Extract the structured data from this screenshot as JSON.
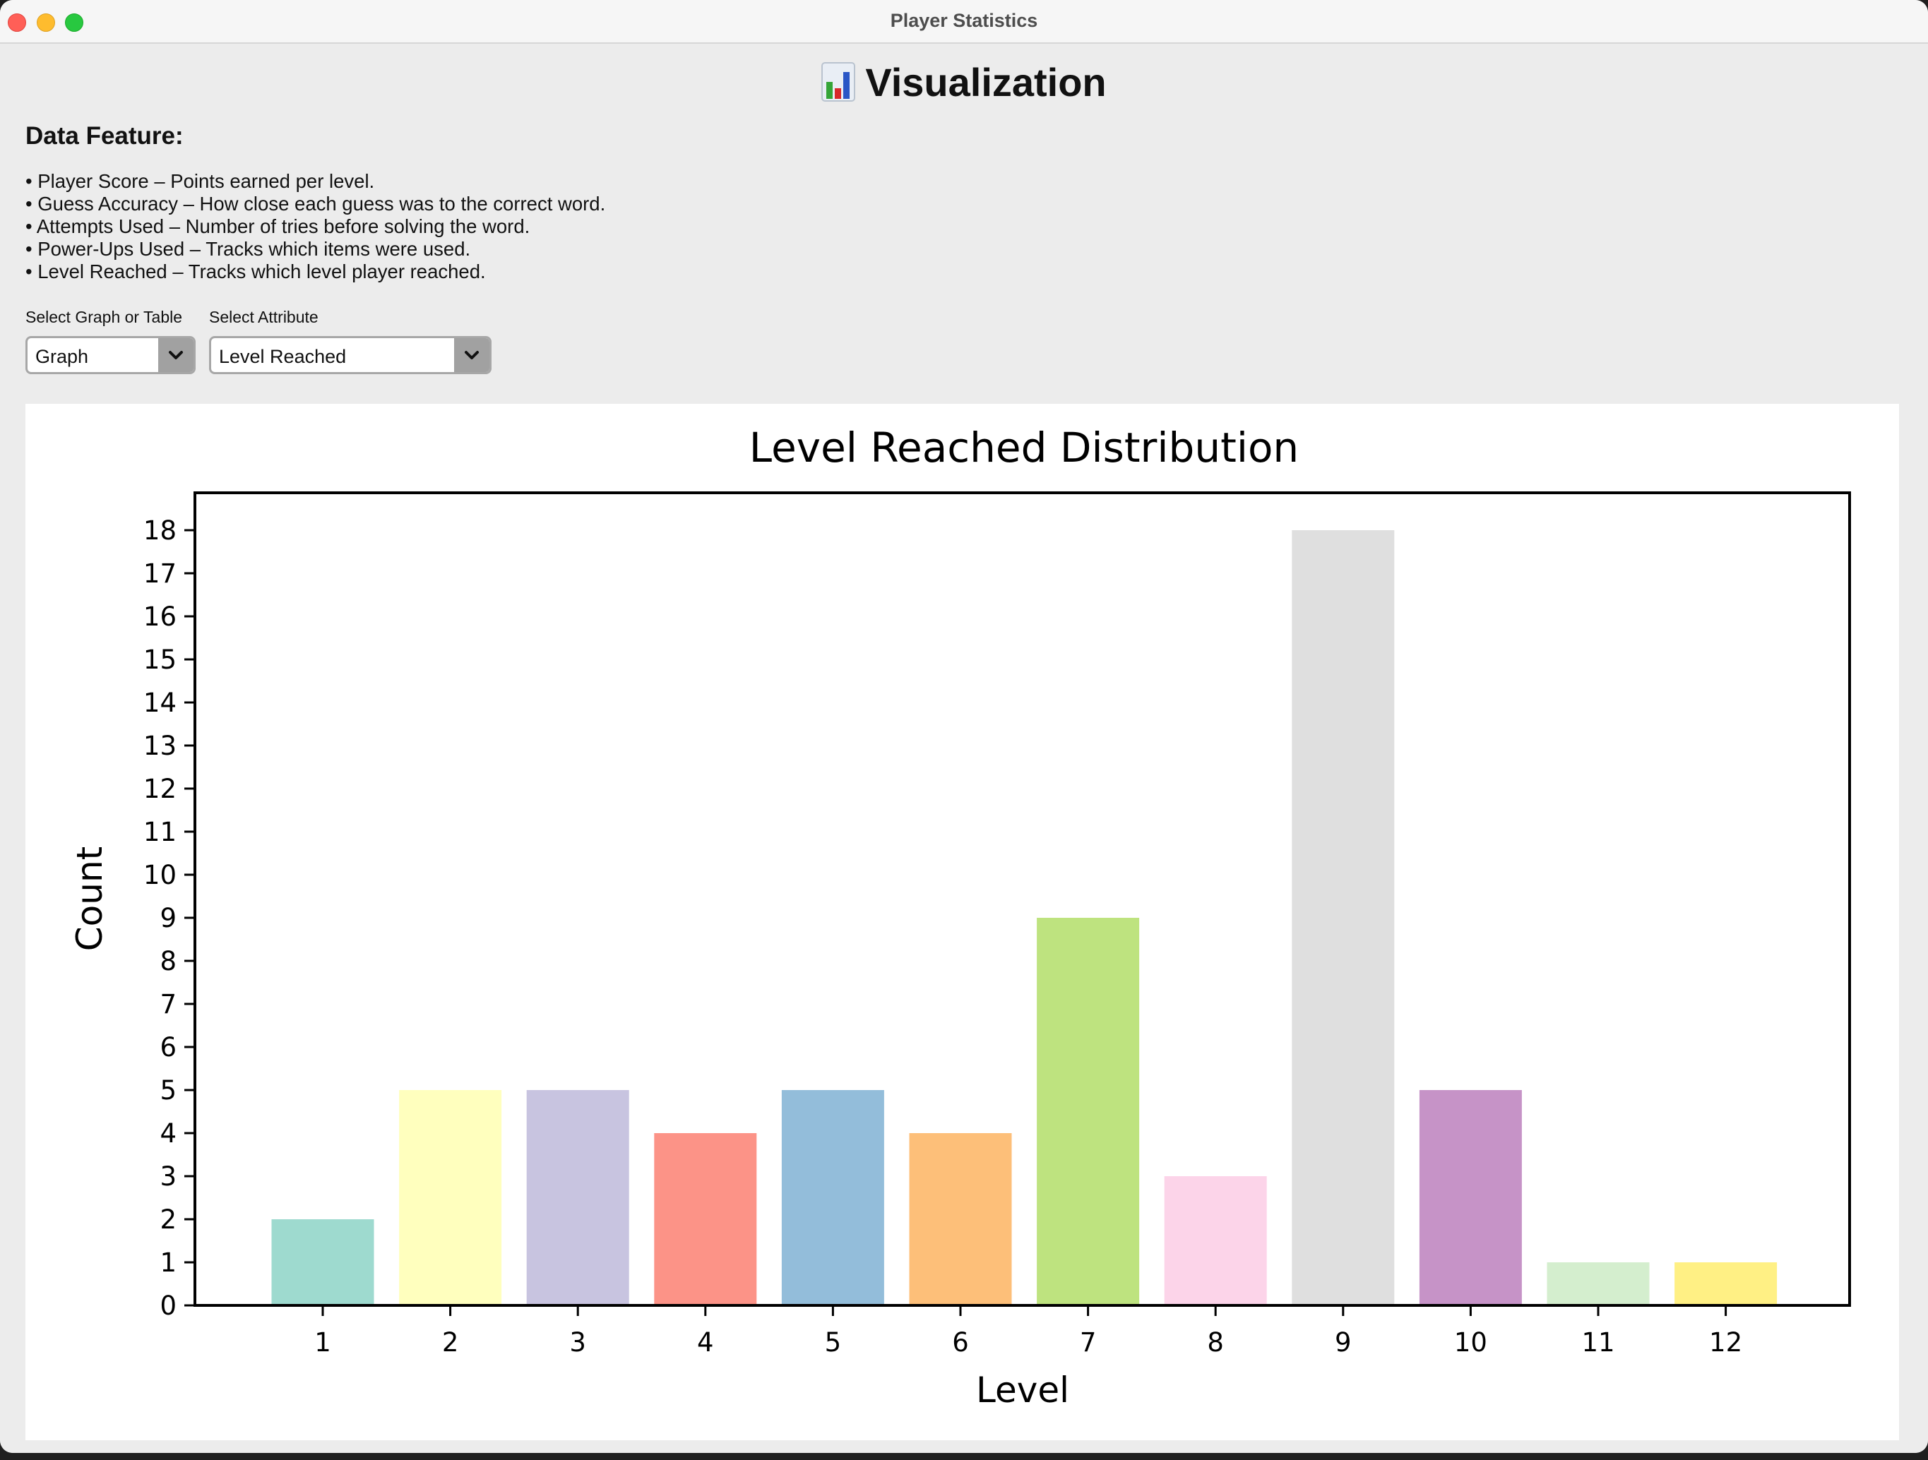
{
  "window": {
    "title": "Player Statistics"
  },
  "header": {
    "title": "Visualization",
    "icon": "bar-chart-icon"
  },
  "features": {
    "title": "Data Feature:",
    "items": [
      "• Player Score – Points earned per level.",
      "• Guess Accuracy – How close each guess was to the correct word.",
      "• Attempts Used – Number of tries before solving the word.",
      "• Power-Ups Used – Tracks which items were used.",
      "• Level Reached – Tracks which level player reached."
    ]
  },
  "controls": {
    "graph_or_table": {
      "label": "Select Graph or Table",
      "value": "Graph"
    },
    "attribute": {
      "label": "Select Attribute",
      "value": "Level Reached"
    }
  },
  "chart_data": {
    "type": "bar",
    "title": "Level Reached Distribution",
    "xlabel": "Level",
    "ylabel": "Count",
    "categories": [
      "1",
      "2",
      "3",
      "4",
      "5",
      "6",
      "7",
      "8",
      "9",
      "10",
      "11",
      "12"
    ],
    "values": [
      2,
      5,
      5,
      4,
      5,
      4,
      9,
      3,
      18,
      5,
      1,
      1
    ],
    "colors": [
      "#8dd3c7",
      "#ffffb3",
      "#bebada",
      "#fb8072",
      "#80b1d3",
      "#fdb462",
      "#b3de69",
      "#fccde5",
      "#d9d9d9",
      "#bc80bd",
      "#ccebc5",
      "#ffed6f"
    ],
    "bar_alpha": 0.85,
    "ylim": [
      0,
      19
    ],
    "yticks": [
      0,
      1,
      2,
      3,
      4,
      5,
      6,
      7,
      8,
      9,
      10,
      11,
      12,
      13,
      14,
      15,
      16,
      17,
      18
    ],
    "grid": false,
    "legend": "none"
  }
}
